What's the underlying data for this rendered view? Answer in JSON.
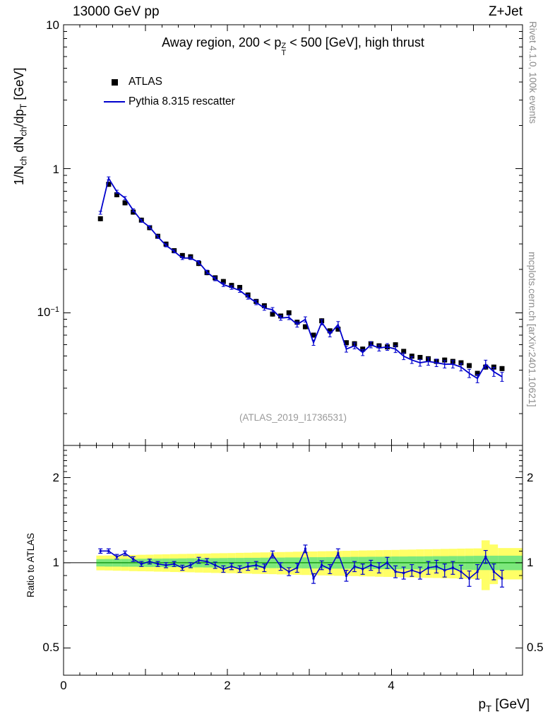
{
  "page": {
    "title_left": "13000 GeV pp",
    "title_right": "Z+Jet"
  },
  "titles": {
    "inner_prefix": "Away region, 200 < p",
    "inner_sup": "Z",
    "inner_sub": "T",
    "inner_suffix": " < 500 [GeV], high thrust",
    "watermark": "(ATLAS_2019_I1736531)"
  },
  "legend": {
    "entries": [
      {
        "label": "ATLAS",
        "marker": "black-filled-square"
      },
      {
        "label": "Pythia 8.315 rescatter",
        "marker": "blue-line"
      }
    ]
  },
  "side_notes": {
    "top_rotated": "Rivet 4.1.0,  100k events",
    "bottom_rotated": "mcplots.cern.ch [arXiv:2401.10621]"
  },
  "axes": {
    "main_y_title": {
      "p0": "1/N",
      "s0": "ch",
      "p1": " dN",
      "s1": "ch",
      "p2": "/dp",
      "s2": "T",
      "p3": " [GeV]"
    },
    "x_title": {
      "p0": "p",
      "s0": "T",
      "p1": " [GeV]"
    },
    "main_y_ticks": {
      "t10": "10",
      "t1": "1",
      "tm1_base": "10",
      "tm1_exp": "−1"
    },
    "ratio_y_ticks": {
      "t2": "2",
      "t1": "1",
      "t05": "0.5"
    },
    "x_ticks": [
      "0",
      "2",
      "4"
    ],
    "ratio_y_title": "Ratio to ATLAS"
  },
  "colors": {
    "mc_line": "#0000cd",
    "data_marker": "#000000",
    "band_yellow": "#ffff66",
    "band_green": "#7ce87c",
    "band_green_edge": "#00a000",
    "frame": "#000000",
    "watermark": "#999999",
    "side_note": "#8c8c8c"
  },
  "chart_data": [
    {
      "type": "line",
      "panel": "main",
      "title": "Away region, 200 < pT^Z < 500 [GeV], high thrust",
      "xlabel": "pT [GeV]",
      "ylabel": "1/Nch dNch/dpT [GeV]",
      "yscale": "log",
      "xlim": [
        0,
        5.6
      ],
      "ylim": [
        0.012,
        10
      ],
      "legend_position": "top-left",
      "grid": false,
      "x": [
        0.45,
        0.55,
        0.65,
        0.75,
        0.85,
        0.95,
        1.05,
        1.15,
        1.25,
        1.35,
        1.45,
        1.55,
        1.65,
        1.75,
        1.85,
        1.95,
        2.05,
        2.15,
        2.25,
        2.35,
        2.45,
        2.55,
        2.65,
        2.75,
        2.85,
        2.95,
        3.05,
        3.15,
        3.25,
        3.35,
        3.45,
        3.55,
        3.65,
        3.75,
        3.85,
        3.95,
        4.05,
        4.15,
        4.25,
        4.35,
        4.45,
        4.55,
        4.65,
        4.75,
        4.85,
        4.95,
        5.05,
        5.15,
        5.25,
        5.35
      ],
      "series": [
        {
          "name": "ATLAS",
          "style": "filled-square-markers",
          "color": "#000000",
          "err_rel": 0.04,
          "values": [
            0.45,
            0.78,
            0.66,
            0.58,
            0.5,
            0.44,
            0.39,
            0.34,
            0.3,
            0.27,
            0.25,
            0.245,
            0.22,
            0.19,
            0.175,
            0.165,
            0.155,
            0.15,
            0.133,
            0.12,
            0.112,
            0.098,
            0.095,
            0.1,
            0.086,
            0.08,
            0.07,
            0.088,
            0.075,
            0.077,
            0.062,
            0.061,
            0.056,
            0.061,
            0.059,
            0.058,
            0.06,
            0.054,
            0.05,
            0.049,
            0.048,
            0.046,
            0.047,
            0.046,
            0.045,
            0.043,
            0.038,
            0.042,
            0.042,
            0.041
          ]
        },
        {
          "name": "Pythia 8.315 rescatter",
          "style": "line-with-error-bars",
          "color": "#0000cd",
          "values": [
            0.495,
            0.858,
            0.693,
            0.626,
            0.515,
            0.436,
            0.394,
            0.337,
            0.294,
            0.267,
            0.24,
            0.24,
            0.224,
            0.192,
            0.172,
            0.157,
            0.15,
            0.143,
            0.129,
            0.118,
            0.108,
            0.105,
            0.092,
            0.093,
            0.083,
            0.09,
            0.062,
            0.086,
            0.071,
            0.083,
            0.056,
            0.059,
            0.053,
            0.06,
            0.057,
            0.058,
            0.056,
            0.05,
            0.047,
            0.045,
            0.046,
            0.045,
            0.044,
            0.044,
            0.042,
            0.038,
            0.035,
            0.044,
            0.039,
            0.036
          ]
        }
      ]
    },
    {
      "type": "line",
      "panel": "ratio",
      "ylabel": "Ratio to ATLAS",
      "yscale": "log",
      "xlim": [
        0,
        5.6
      ],
      "ylim": [
        0.4,
        2.6
      ],
      "yticks": [
        0.5,
        1,
        2
      ],
      "reference_line": 1,
      "x": [
        0.45,
        0.55,
        0.65,
        0.75,
        0.85,
        0.95,
        1.05,
        1.15,
        1.25,
        1.35,
        1.45,
        1.55,
        1.65,
        1.75,
        1.85,
        1.95,
        2.05,
        2.15,
        2.25,
        2.35,
        2.45,
        2.55,
        2.65,
        2.75,
        2.85,
        2.95,
        3.05,
        3.15,
        3.25,
        3.35,
        3.45,
        3.55,
        3.65,
        3.75,
        3.85,
        3.95,
        4.05,
        4.15,
        4.25,
        4.35,
        4.45,
        4.55,
        4.65,
        4.75,
        4.85,
        4.95,
        5.05,
        5.15,
        5.25,
        5.35
      ],
      "ratio": [
        1.1,
        1.1,
        1.05,
        1.08,
        1.03,
        0.99,
        1.01,
        0.99,
        0.98,
        0.99,
        0.96,
        0.98,
        1.02,
        1.01,
        0.98,
        0.95,
        0.97,
        0.95,
        0.97,
        0.98,
        0.96,
        1.07,
        0.97,
        0.93,
        0.96,
        1.12,
        0.88,
        0.98,
        0.95,
        1.08,
        0.9,
        0.97,
        0.95,
        0.98,
        0.96,
        1.0,
        0.93,
        0.92,
        0.94,
        0.92,
        0.96,
        0.97,
        0.94,
        0.96,
        0.93,
        0.88,
        0.93,
        1.05,
        0.93,
        0.88
      ],
      "ratio_err": [
        0.02,
        0.02,
        0.02,
        0.02,
        0.02,
        0.02,
        0.02,
        0.02,
        0.02,
        0.02,
        0.02,
        0.02,
        0.025,
        0.025,
        0.025,
        0.025,
        0.025,
        0.025,
        0.03,
        0.03,
        0.03,
        0.03,
        0.03,
        0.03,
        0.035,
        0.035,
        0.035,
        0.035,
        0.035,
        0.04,
        0.04,
        0.04,
        0.04,
        0.04,
        0.04,
        0.045,
        0.045,
        0.045,
        0.045,
        0.045,
        0.05,
        0.05,
        0.05,
        0.05,
        0.05,
        0.055,
        0.055,
        0.055,
        0.06,
        0.06
      ],
      "band_yellow_half": [
        0.06,
        0.061,
        0.063,
        0.064,
        0.066,
        0.067,
        0.068,
        0.07,
        0.071,
        0.073,
        0.074,
        0.075,
        0.077,
        0.078,
        0.08,
        0.081,
        0.082,
        0.084,
        0.085,
        0.087,
        0.088,
        0.089,
        0.091,
        0.092,
        0.094,
        0.095,
        0.096,
        0.098,
        0.099,
        0.101,
        0.102,
        0.103,
        0.105,
        0.106,
        0.108,
        0.109,
        0.11,
        0.112,
        0.113,
        0.115,
        0.116,
        0.117,
        0.119,
        0.12,
        0.122,
        0.123,
        0.124,
        0.2,
        0.16,
        0.127
      ],
      "band_green_half": [
        0.03,
        0.031,
        0.031,
        0.032,
        0.032,
        0.033,
        0.034,
        0.034,
        0.035,
        0.035,
        0.036,
        0.037,
        0.037,
        0.038,
        0.038,
        0.039,
        0.04,
        0.04,
        0.041,
        0.041,
        0.042,
        0.043,
        0.043,
        0.044,
        0.044,
        0.045,
        0.046,
        0.046,
        0.047,
        0.047,
        0.048,
        0.049,
        0.049,
        0.05,
        0.05,
        0.051,
        0.052,
        0.052,
        0.053,
        0.053,
        0.054,
        0.055,
        0.055,
        0.056,
        0.056,
        0.057,
        0.058,
        0.058,
        0.059,
        0.059
      ]
    }
  ]
}
